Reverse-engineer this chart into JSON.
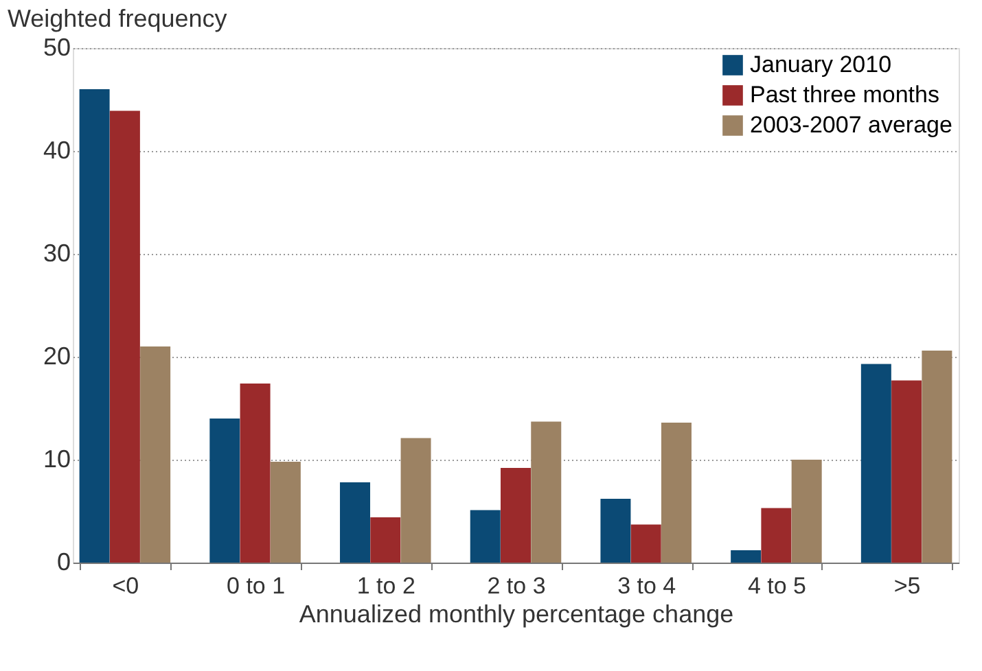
{
  "chart_data": {
    "type": "bar",
    "ylabel": "Weighted frequency",
    "xlabel": "Annualized monthly percentage change",
    "categories": [
      "<0",
      "0 to 1",
      "1 to 2",
      "2 to 3",
      "3 to 4",
      "4 to 5",
      ">5"
    ],
    "series": [
      {
        "name": "January 2010",
        "color": "#0b4a75",
        "values": [
          46.0,
          14.0,
          7.8,
          5.1,
          6.2,
          1.2,
          19.3
        ]
      },
      {
        "name": "Past three months",
        "color": "#9b2a2b",
        "values": [
          43.9,
          17.4,
          4.4,
          9.2,
          3.7,
          5.3,
          17.7
        ]
      },
      {
        "name": "2003-2007 average",
        "color": "#9c8263",
        "values": [
          21.0,
          9.8,
          12.1,
          13.7,
          13.6,
          10.0,
          20.6
        ]
      }
    ],
    "ylim": [
      0,
      50
    ],
    "yticks": [
      0,
      10,
      20,
      30,
      40,
      50
    ],
    "grid": "y",
    "legend": "top right"
  }
}
